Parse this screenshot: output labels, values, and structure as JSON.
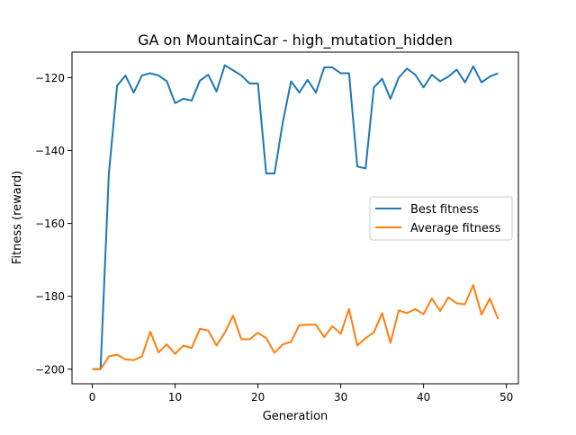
{
  "chart_data": {
    "type": "line",
    "title": "GA on MountainCar - high_mutation_hidden",
    "xlabel": "Generation",
    "ylabel": "Fitness (reward)",
    "xlim": [
      -2.45,
      51.45
    ],
    "ylim": [
      -204,
      -113
    ],
    "x_ticks": [
      0,
      10,
      20,
      30,
      40,
      50
    ],
    "y_ticks": [
      -200,
      -180,
      -160,
      -140,
      -120
    ],
    "y_tick_labels": [
      "−200",
      "−180",
      "−160",
      "−140",
      "−120"
    ],
    "legend_position": "center-right",
    "grid": false,
    "x": [
      0,
      1,
      2,
      3,
      4,
      5,
      6,
      7,
      8,
      9,
      10,
      11,
      12,
      13,
      14,
      15,
      16,
      17,
      18,
      19,
      20,
      21,
      22,
      23,
      24,
      25,
      26,
      27,
      28,
      29,
      30,
      31,
      32,
      33,
      34,
      35,
      36,
      37,
      38,
      39,
      40,
      41,
      42,
      43,
      44,
      45,
      46,
      47,
      48,
      49
    ],
    "series": [
      {
        "name": "Best fitness",
        "color": "#1f77b4",
        "values": [
          -200,
          -200,
          -146.3,
          -122.2,
          -119.4,
          -124.1,
          -119.4,
          -118.8,
          -119.4,
          -121.0,
          -127.0,
          -125.8,
          -126.3,
          -120.8,
          -119.2,
          -123.8,
          -116.6,
          -118.0,
          -119.4,
          -121.6,
          -121.6,
          -146.3,
          -146.3,
          -132.3,
          -121.0,
          -124.1,
          -120.6,
          -124.1,
          -117.2,
          -117.2,
          -118.8,
          -118.8,
          -144.4,
          -144.9,
          -122.7,
          -120.3,
          -125.8,
          -120.0,
          -117.5,
          -119.2,
          -122.7,
          -119.2,
          -121.0,
          -119.7,
          -117.8,
          -121.3,
          -116.9,
          -121.3,
          -119.7,
          -118.8
        ]
      },
      {
        "name": "Average fitness",
        "color": "#ff7f0e",
        "values": [
          -200,
          -200,
          -196.5,
          -196,
          -197.3,
          -197.5,
          -196.5,
          -189.7,
          -195.4,
          -193.2,
          -195.8,
          -193.5,
          -194.2,
          -188.9,
          -189.4,
          -193.5,
          -190.0,
          -185.3,
          -191.8,
          -191.8,
          -190.0,
          -191.5,
          -195.5,
          -193.2,
          -192.5,
          -187.9,
          -187.8,
          -187.8,
          -191.2,
          -188.2,
          -190.3,
          -183.5,
          -193.5,
          -191.5,
          -189.9,
          -184.6,
          -192.8,
          -183.9,
          -184.6,
          -183.5,
          -184.9,
          -180.6,
          -184.0,
          -180.3,
          -181.9,
          -182.2,
          -176.9,
          -185.0,
          -180.6,
          -186.2
        ]
      }
    ]
  }
}
